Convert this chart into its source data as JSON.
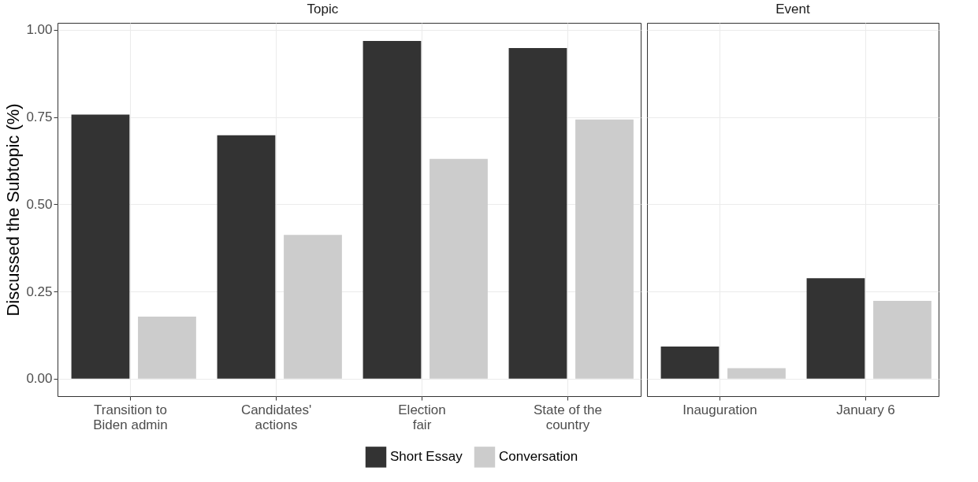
{
  "chart_data": [
    {
      "type": "bar",
      "title": "Topic",
      "ylabel": "Discussed the Subtopic (%)",
      "categories": [
        "Transition to\nBiden admin",
        "Candidates'\nactions",
        "Election\nfair",
        "State of the\ncountry"
      ],
      "series": [
        {
          "name": "Short Essay",
          "color": "#333333",
          "values": [
            0.757,
            0.698,
            0.968,
            0.948
          ]
        },
        {
          "name": "Conversation",
          "color": "#cccccc",
          "values": [
            0.178,
            0.412,
            0.63,
            0.743
          ]
        }
      ],
      "ylim": [
        -0.05,
        1.02
      ],
      "yticks": [
        {
          "value": 0,
          "label": "0.00"
        },
        {
          "value": 0.25,
          "label": "0.25"
        },
        {
          "value": 0.5,
          "label": "0.50"
        },
        {
          "value": 0.75,
          "label": "0.75"
        },
        {
          "value": 1,
          "label": "1.00"
        }
      ],
      "grid": true,
      "legend": "bottom"
    },
    {
      "type": "bar",
      "title": "Event",
      "categories": [
        "Inauguration",
        "January 6"
      ],
      "series": [
        {
          "name": "Short Essay",
          "color": "#333333",
          "values": [
            0.092,
            0.288
          ]
        },
        {
          "name": "Conversation",
          "color": "#cccccc",
          "values": [
            0.03,
            0.223
          ]
        }
      ],
      "ylim": [
        -0.05,
        1.02
      ],
      "yticks": [
        0,
        0.25,
        0.5,
        0.75,
        1
      ],
      "grid": true,
      "legend": "bottom",
      "tick_labels": "x"
    }
  ]
}
